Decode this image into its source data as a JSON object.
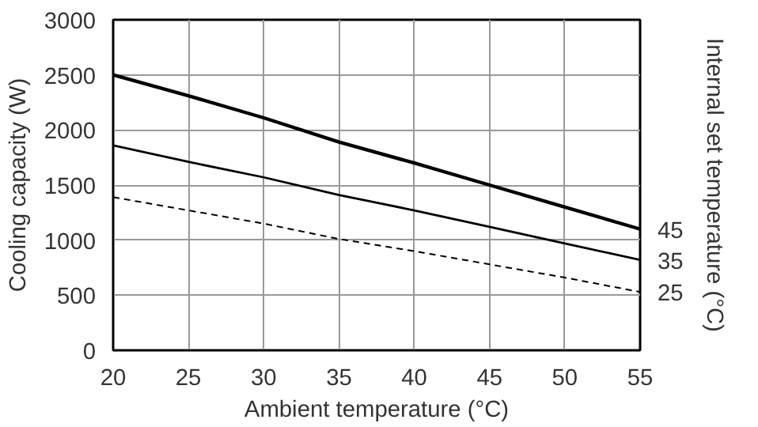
{
  "chart_data": {
    "type": "line",
    "xlabel": "Ambient temperature (°C)",
    "ylabel": "Cooling capacity (W)",
    "y2label": "Internal set temperature (°C)",
    "x": [
      20,
      25,
      30,
      35,
      40,
      45,
      50,
      55
    ],
    "xlim": [
      20,
      55
    ],
    "xticks": [
      20,
      25,
      30,
      35,
      40,
      45,
      50,
      55
    ],
    "ylim": [
      0,
      3000
    ],
    "yticks": [
      0,
      500,
      1000,
      1500,
      2000,
      2500,
      3000
    ],
    "grid": true,
    "series": [
      {
        "name": "45",
        "color": "#000000",
        "line_style": "solid",
        "values": [
          2500,
          2310,
          2110,
          1890,
          1700,
          1500,
          1300,
          1100
        ]
      },
      {
        "name": "35",
        "color": "#000000",
        "line_style": "solid",
        "values": [
          1860,
          1710,
          1570,
          1410,
          1270,
          1120,
          970,
          820
        ]
      },
      {
        "name": "25",
        "color": "#000000",
        "line_style": "dashed",
        "values": [
          1390,
          1270,
          1150,
          1010,
          900,
          780,
          660,
          530
        ]
      }
    ]
  }
}
